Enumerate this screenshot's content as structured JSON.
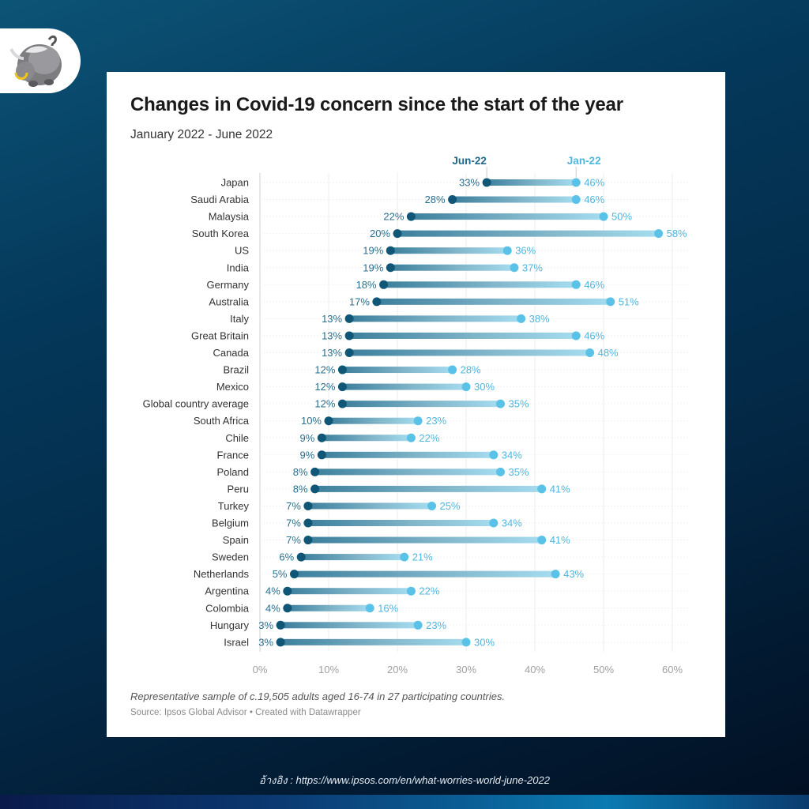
{
  "reference": "อ้างอิง : https://www.ipsos.com/en/what-worries-world-june-2022",
  "colors": {
    "jun": "#0f5677",
    "jan": "#5bc2e7",
    "jun_label": "#2a6f8e",
    "jan_label": "#4fb6dd"
  },
  "chart_data": {
    "type": "dumbbell",
    "title": "Changes in Covid-19 concern since the start of the year",
    "subtitle": "January 2022 - June 2022",
    "xlabel": "",
    "ylabel": "",
    "xlim": [
      0,
      60
    ],
    "x_ticks": [
      0,
      10,
      20,
      30,
      40,
      50,
      60
    ],
    "x_tick_labels": [
      "0%",
      "10%",
      "20%",
      "30%",
      "40%",
      "50%",
      "60%"
    ],
    "grid": true,
    "legend_position": "top",
    "series": [
      {
        "name": "Jun-22",
        "key": "jun"
      },
      {
        "name": "Jan-22",
        "key": "jan"
      }
    ],
    "categories": [
      "Japan",
      "Saudi Arabia",
      "Malaysia",
      "South Korea",
      "US",
      "India",
      "Germany",
      "Australia",
      "Italy",
      "Great Britain",
      "Canada",
      "Brazil",
      "Mexico",
      "Global country average",
      "South Africa",
      "Chile",
      "France",
      "Poland",
      "Peru",
      "Turkey",
      "Belgium",
      "Spain",
      "Sweden",
      "Netherlands",
      "Argentina",
      "Colombia",
      "Hungary",
      "Israel"
    ],
    "jun": [
      33,
      28,
      22,
      20,
      19,
      19,
      18,
      17,
      13,
      13,
      13,
      12,
      12,
      12,
      10,
      9,
      9,
      8,
      8,
      7,
      7,
      7,
      6,
      5,
      4,
      4,
      3,
      3
    ],
    "jan": [
      46,
      46,
      50,
      58,
      36,
      37,
      46,
      51,
      38,
      46,
      48,
      28,
      30,
      35,
      23,
      22,
      34,
      35,
      41,
      25,
      34,
      41,
      21,
      43,
      22,
      16,
      23,
      30
    ],
    "value_suffix": "%",
    "note": "Representative sample of c.19,505 adults aged 16-74 in 27 participating countries.",
    "source": "Source: Ipsos Global Advisor • Created with Datawrapper"
  }
}
